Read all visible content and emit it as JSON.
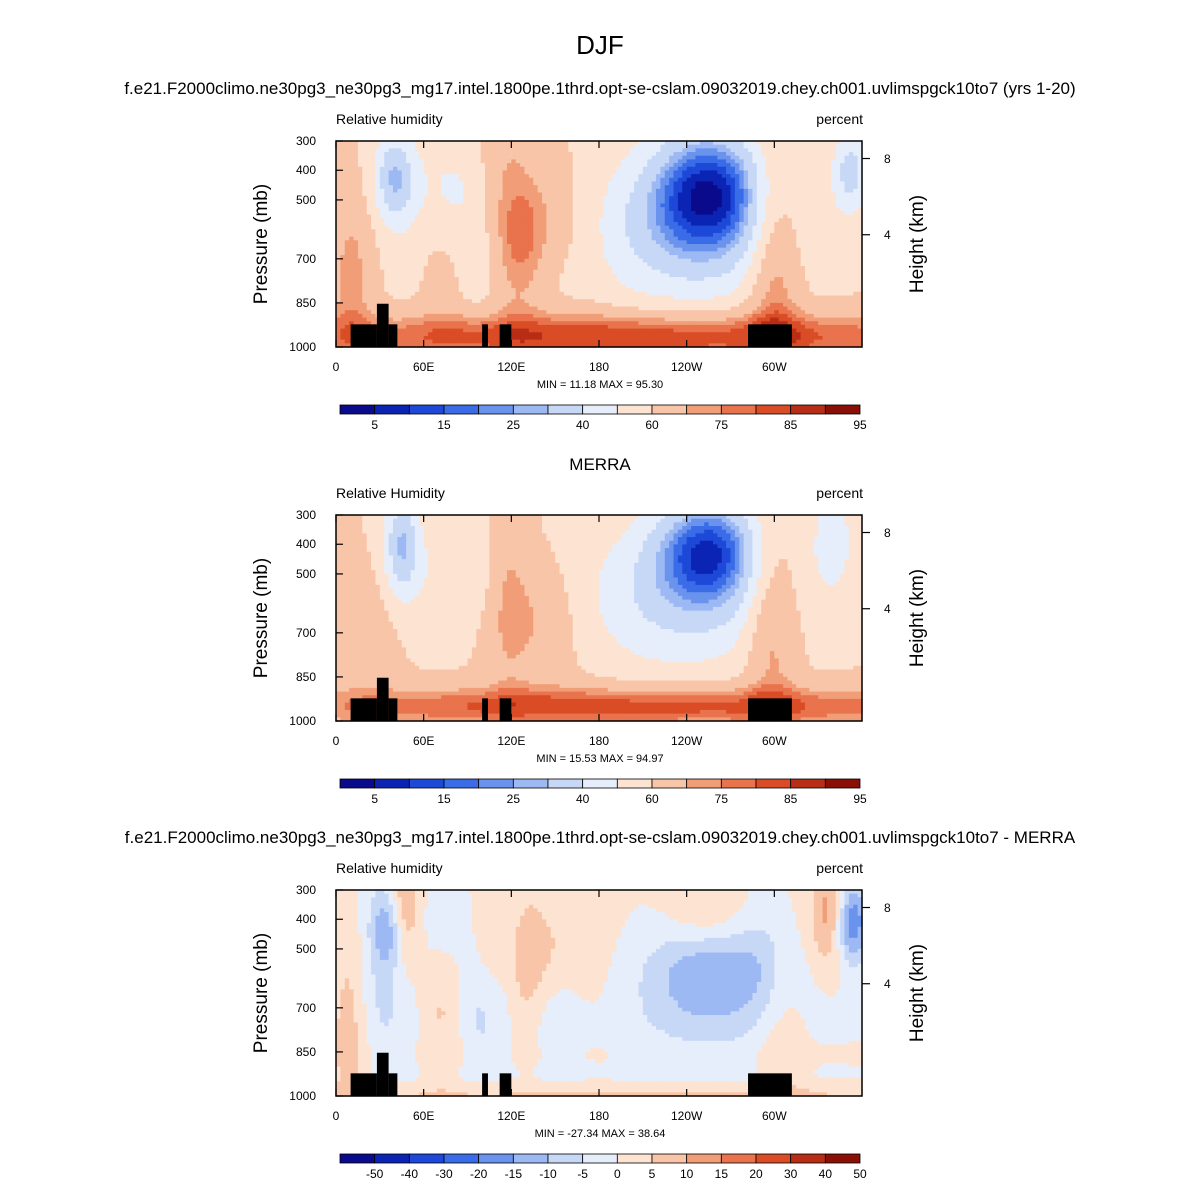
{
  "title": "DJF",
  "case_title": "f.e21.F2000climo.ne30pg3_ne30pg3_mg17.intel.1800pe.1thrd.opt-se-cslam.09032019.chey.ch001.uvlimspgck10to7 (yrs 1-20)",
  "obs_title": "MERRA",
  "diff_title": "f.e21.F2000climo.ne30pg3_ne30pg3_mg17.intel.1800pe.1thrd.opt-se-cslam.09032019.chey.ch001.uvlimspgck10to7 - MERRA",
  "colors": {
    "rh_levels": [
      "#0a0a8c",
      "#0b24b4",
      "#1d48d8",
      "#3b6ce8",
      "#6a93ee",
      "#9db9f3",
      "#c7d8f7",
      "#e7eefb",
      "#fde4d2",
      "#f8c5a8",
      "#f19e78",
      "#e9734c",
      "#d94c25",
      "#b82d15",
      "#8a1007"
    ],
    "diff_levels": [
      "#0a0a8c",
      "#0b24b4",
      "#1d48d8",
      "#3b6ce8",
      "#6a93ee",
      "#9db9f3",
      "#c7d8f7",
      "#e7eefb",
      "#fde4d2",
      "#f8c5a8",
      "#f19e78",
      "#e9734c",
      "#d94c25",
      "#b82d15",
      "#8a1007"
    ],
    "terrain": "#000000"
  },
  "chart_data": [
    {
      "type": "heatmap",
      "name": "model",
      "left_label": "Relative humidity",
      "right_label": "percent",
      "ylabel": "Pressure (mb)",
      "y2label": "Height (km)",
      "x_ticks": [
        "0",
        "60E",
        "120E",
        "180",
        "120W",
        "60W"
      ],
      "y_ticks": [
        "300",
        "400",
        "500",
        "700",
        "850",
        "1000"
      ],
      "y2_ticks": [
        "8",
        "4"
      ],
      "xlim": [
        0,
        360
      ],
      "ylim": [
        1000,
        300
      ],
      "min_label": "MIN =  11.18  MAX =  95.30",
      "min": 11.18,
      "max": 95.3,
      "colorbar_ticks": [
        "5",
        "15",
        "25",
        "40",
        "60",
        "75",
        "85",
        "95"
      ]
    },
    {
      "type": "heatmap",
      "name": "obs",
      "left_label": "Relative Humidity",
      "right_label": "percent",
      "ylabel": "Pressure (mb)",
      "y2label": "Height (km)",
      "x_ticks": [
        "0",
        "60E",
        "120E",
        "180",
        "120W",
        "60W"
      ],
      "y_ticks": [
        "300",
        "400",
        "500",
        "700",
        "850",
        "1000"
      ],
      "y2_ticks": [
        "8",
        "4"
      ],
      "xlim": [
        0,
        360
      ],
      "ylim": [
        1000,
        300
      ],
      "min_label": "MIN =  15.53  MAX =  94.97",
      "min": 15.53,
      "max": 94.97,
      "colorbar_ticks": [
        "5",
        "15",
        "25",
        "40",
        "60",
        "75",
        "85",
        "95"
      ]
    },
    {
      "type": "heatmap",
      "name": "diff",
      "left_label": "Relative humidity",
      "right_label": "percent",
      "ylabel": "Pressure (mb)",
      "y2label": "Height (km)",
      "x_ticks": [
        "0",
        "60E",
        "120E",
        "180",
        "120W",
        "60W"
      ],
      "y_ticks": [
        "300",
        "400",
        "500",
        "700",
        "850",
        "1000"
      ],
      "y2_ticks": [
        "8",
        "4"
      ],
      "xlim": [
        0,
        360
      ],
      "ylim": [
        1000,
        300
      ],
      "min_label": "MIN = -27.34  MAX =  38.64",
      "min": -27.34,
      "max": 38.64,
      "colorbar_ticks": [
        "-50",
        "-40",
        "-30",
        "-20",
        "-15",
        "-10",
        "-5",
        "0",
        "5",
        "10",
        "15",
        "20",
        "30",
        "40",
        "50"
      ]
    }
  ]
}
